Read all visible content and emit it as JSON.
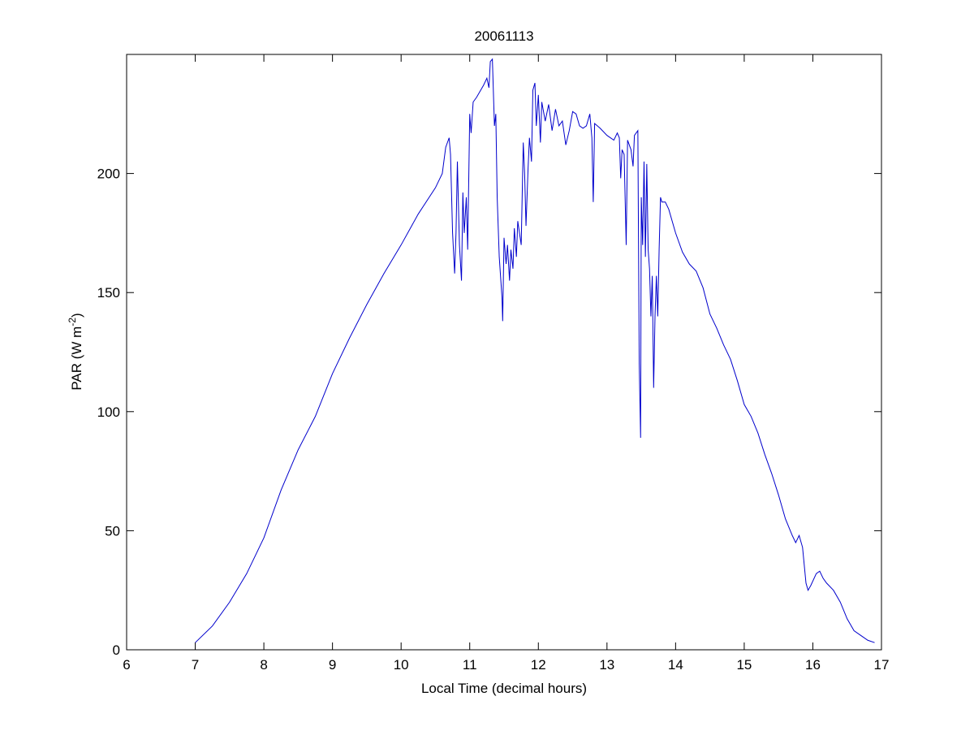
{
  "chart_data": {
    "type": "line",
    "title": "20061113",
    "xlabel": "Local Time (decimal hours)",
    "ylabel": {
      "text": "PAR (W m",
      "superscript": "-2",
      "suffix": ")"
    },
    "xlim": [
      6,
      17
    ],
    "xticks": [
      6,
      7,
      8,
      9,
      10,
      11,
      12,
      13,
      14,
      15,
      16,
      17
    ],
    "ylim": [
      0,
      250
    ],
    "yticks": [
      0,
      50,
      100,
      150,
      200
    ],
    "grid": false,
    "series": [
      {
        "color": "#0000cc",
        "x": [
          7.0,
          7.25,
          7.5,
          7.75,
          8.0,
          8.1,
          8.25,
          8.5,
          8.75,
          9.0,
          9.25,
          9.5,
          9.75,
          10.0,
          10.25,
          10.5,
          10.6,
          10.65,
          10.7,
          10.72,
          10.75,
          10.78,
          10.8,
          10.82,
          10.85,
          10.88,
          10.9,
          10.92,
          10.95,
          10.97,
          11.0,
          11.02,
          11.05,
          11.1,
          11.2,
          11.25,
          11.28,
          11.3,
          11.33,
          11.36,
          11.38,
          11.4,
          11.43,
          11.47,
          11.48,
          11.5,
          11.53,
          11.55,
          11.58,
          11.6,
          11.63,
          11.65,
          11.68,
          11.7,
          11.75,
          11.78,
          11.8,
          11.82,
          11.85,
          11.87,
          11.9,
          11.92,
          11.95,
          11.97,
          12.0,
          12.03,
          12.05,
          12.1,
          12.15,
          12.2,
          12.25,
          12.3,
          12.35,
          12.4,
          12.45,
          12.5,
          12.55,
          12.6,
          12.65,
          12.7,
          12.75,
          12.78,
          12.8,
          12.82,
          12.9,
          13.0,
          13.1,
          13.15,
          13.18,
          13.2,
          13.22,
          13.25,
          13.28,
          13.3,
          13.35,
          13.38,
          13.4,
          13.45,
          13.47,
          13.49,
          13.5,
          13.52,
          13.54,
          13.56,
          13.58,
          13.6,
          13.62,
          13.64,
          13.66,
          13.68,
          13.7,
          13.72,
          13.74,
          13.76,
          13.78,
          13.8,
          13.85,
          13.9,
          14.0,
          14.1,
          14.2,
          14.3,
          14.4,
          14.5,
          14.6,
          14.7,
          14.8,
          14.9,
          15.0,
          15.1,
          15.2,
          15.3,
          15.4,
          15.5,
          15.6,
          15.7,
          15.75,
          15.8,
          15.85,
          15.9,
          15.93,
          15.97,
          16.05,
          16.1,
          16.15,
          16.2,
          16.3,
          16.4,
          16.5,
          16.6,
          16.7,
          16.8,
          16.9
        ],
        "values": [
          3,
          10,
          20,
          32,
          47,
          55,
          67,
          84,
          98,
          116,
          131,
          145,
          158,
          170,
          183,
          194,
          200,
          211,
          215,
          208,
          175,
          158,
          175,
          205,
          170,
          155,
          192,
          175,
          190,
          168,
          225,
          217,
          230,
          232,
          237,
          240,
          236,
          247,
          248,
          220,
          225,
          190,
          165,
          148,
          138,
          173,
          162,
          170,
          155,
          168,
          160,
          177,
          165,
          180,
          170,
          213,
          200,
          178,
          202,
          215,
          205,
          235,
          238,
          220,
          233,
          213,
          230,
          222,
          229,
          218,
          227,
          220,
          222,
          212,
          218,
          226,
          225,
          220,
          219,
          220,
          225,
          215,
          188,
          221,
          219,
          216,
          214,
          217,
          215,
          198,
          210,
          208,
          170,
          214,
          210,
          203,
          216,
          218,
          120,
          89,
          190,
          170,
          205,
          165,
          204,
          168,
          160,
          140,
          157,
          110,
          140,
          157,
          140,
          168,
          190,
          188,
          188,
          185,
          175,
          167,
          162,
          159,
          152,
          141,
          135,
          128,
          122,
          113,
          103,
          98,
          91,
          82,
          74,
          65,
          55,
          48,
          45,
          48,
          43,
          28,
          25,
          27,
          32,
          33,
          30,
          28,
          25,
          20,
          13,
          8,
          6,
          4,
          3
        ]
      }
    ]
  }
}
